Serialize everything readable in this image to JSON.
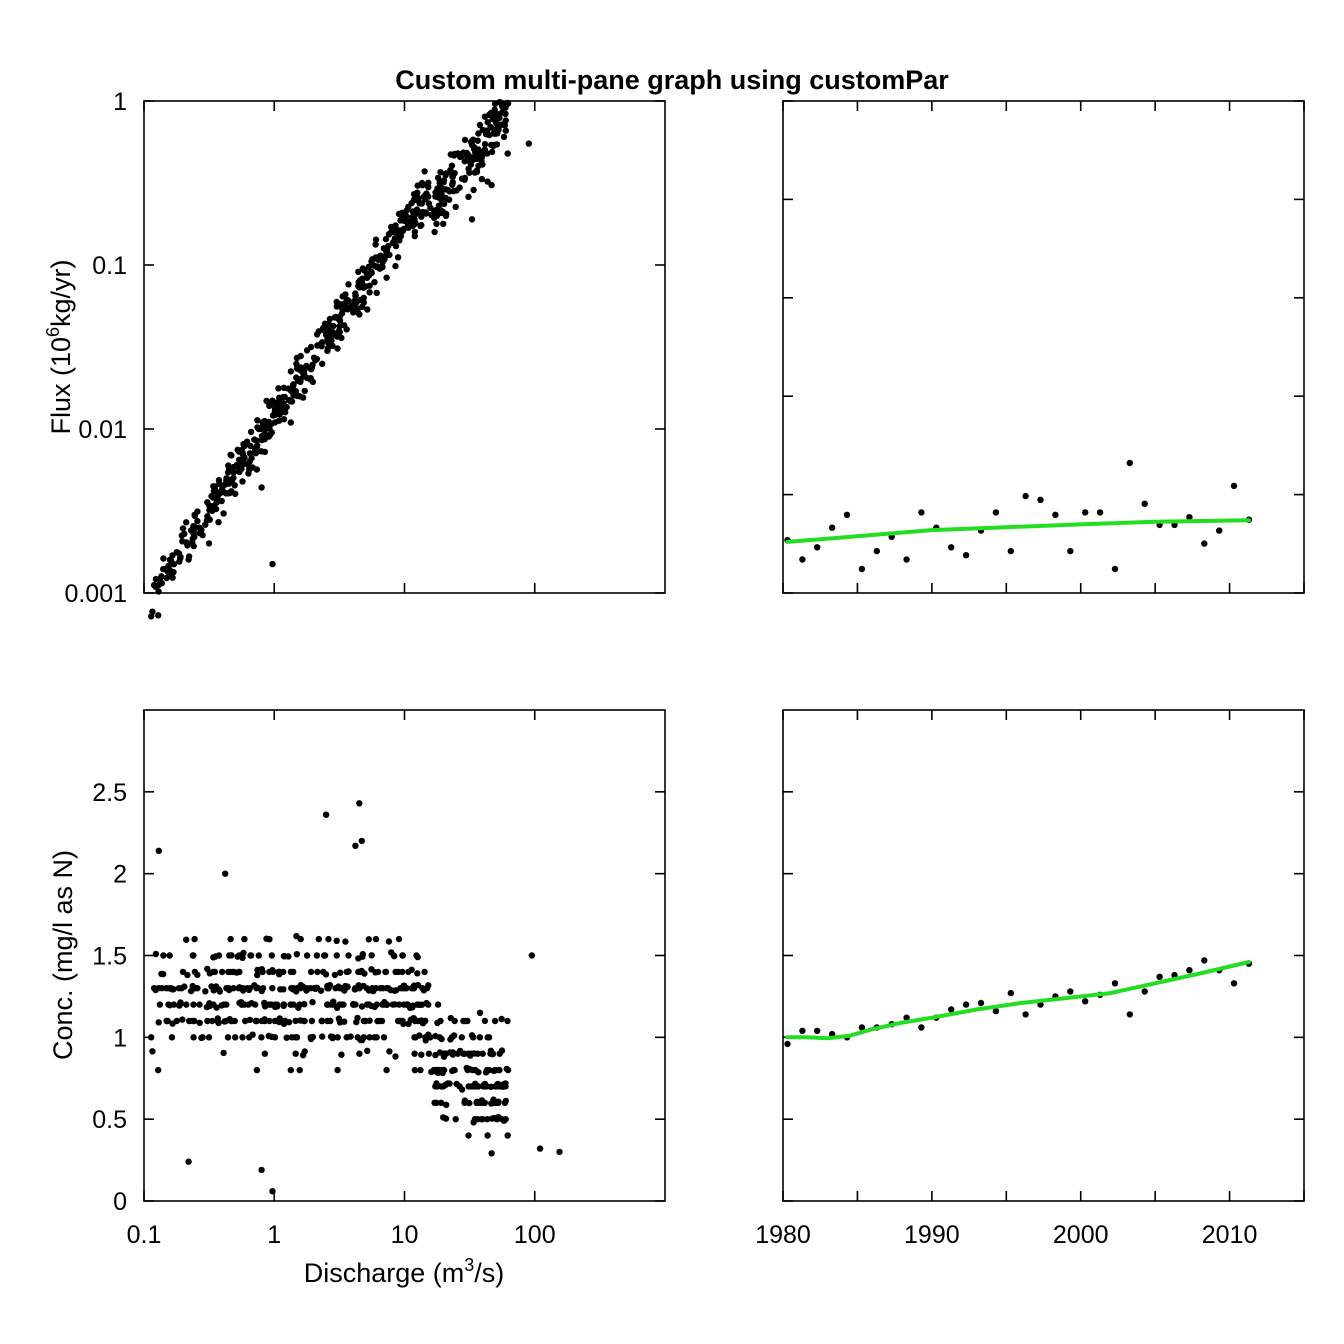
{
  "title": "Custom multi-pane graph using customPar",
  "colors": {
    "points": "#000000",
    "trend": "#22dd22",
    "frame": "#000000",
    "background": "#ffffff"
  },
  "axes": {
    "discharge_label_prefix": "Discharge (m",
    "discharge_label_sup": "3",
    "discharge_label_suffix": "/s)",
    "flux_label_prefix": "Flux (10",
    "flux_label_sup": "6",
    "flux_label_suffix": "kg/yr)",
    "conc_label": "Conc. (mg/l as N)",
    "discharge_ticks": [
      "0.1",
      "1",
      "10",
      "100"
    ],
    "flux_ticks": [
      "0.001",
      "0.01",
      "0.1",
      "1"
    ],
    "conc_ticks": [
      "0",
      "0.5",
      "1",
      "1.5",
      "2",
      "2.5"
    ],
    "year_ticks": [
      "1980",
      "1990",
      "2000",
      "2010"
    ]
  },
  "chart_data": [
    {
      "panel": "flux-vs-discharge",
      "type": "scatter",
      "xscale": "log",
      "yscale": "log",
      "xlim": [
        0.1,
        1000
      ],
      "ylim": [
        0.001,
        1
      ],
      "xlabel": "Discharge (m3/s)",
      "ylabel": "Flux (10^6 kg/yr)",
      "outliers": [
        [
          0.22,
          0.0016
        ],
        [
          0.8,
          0.0044
        ],
        [
          0.97,
          0.0015
        ],
        [
          12,
          0.15
        ],
        [
          22,
          0.25
        ],
        [
          33,
          0.19
        ],
        [
          90,
          0.55
        ]
      ]
    },
    {
      "panel": "flux-vs-year",
      "type": "scatter",
      "xlim": [
        1980,
        2015
      ],
      "points": [
        [
          1980.3,
          0.0021
        ],
        [
          1981.3,
          0.0016
        ],
        [
          1982.3,
          0.0019
        ],
        [
          1983.3,
          0.0025
        ],
        [
          1984.3,
          0.003
        ],
        [
          1985.3,
          0.0014
        ],
        [
          1986.3,
          0.0018
        ],
        [
          1987.3,
          0.0022
        ],
        [
          1988.3,
          0.0016
        ],
        [
          1989.3,
          0.0031
        ],
        [
          1990.3,
          0.0025
        ],
        [
          1991.3,
          0.0019
        ],
        [
          1992.3,
          0.0017
        ],
        [
          1993.3,
          0.0024
        ],
        [
          1994.3,
          0.0031
        ],
        [
          1995.3,
          0.0018
        ],
        [
          1996.3,
          0.0039
        ],
        [
          1997.3,
          0.0037
        ],
        [
          1998.3,
          0.003
        ],
        [
          1999.3,
          0.0018
        ],
        [
          2000.3,
          0.0031
        ],
        [
          2001.3,
          0.0031
        ],
        [
          2002.3,
          0.0014
        ],
        [
          2003.3,
          0.0062
        ],
        [
          2004.3,
          0.0035
        ],
        [
          2005.3,
          0.0026
        ],
        [
          2006.3,
          0.0026
        ],
        [
          2007.3,
          0.0029
        ],
        [
          2008.3,
          0.002
        ],
        [
          2009.3,
          0.0024
        ],
        [
          2010.3,
          0.0045
        ],
        [
          2011.3,
          0.0028
        ]
      ],
      "trend": [
        [
          1980.3,
          0.00205
        ],
        [
          1985,
          0.00222
        ],
        [
          1990,
          0.00242
        ],
        [
          1995,
          0.00252
        ],
        [
          2000,
          0.00262
        ],
        [
          2005,
          0.00272
        ],
        [
          2011.3,
          0.00278
        ]
      ]
    },
    {
      "panel": "conc-vs-discharge",
      "type": "scatter",
      "xscale": "log",
      "xlim": [
        0.1,
        1000
      ],
      "ylim": [
        0,
        3
      ],
      "xlabel": "Discharge (m3/s)",
      "ylabel": "Conc. (mg/l as N)",
      "outliers": [
        [
          0.13,
          2.14
        ],
        [
          0.22,
          0.24
        ],
        [
          0.8,
          0.19
        ],
        [
          0.97,
          0.06
        ],
        [
          2.5,
          2.36
        ],
        [
          4.5,
          2.43
        ],
        [
          4.7,
          2.2
        ],
        [
          4.2,
          2.17
        ],
        [
          95,
          1.5
        ],
        [
          155,
          0.3
        ],
        [
          110,
          0.32
        ],
        [
          38,
          1.15
        ],
        [
          0.42,
          2.0
        ]
      ]
    },
    {
      "panel": "conc-vs-year",
      "type": "scatter",
      "xlim": [
        1980,
        2015
      ],
      "ylim": [
        0,
        3
      ],
      "points": [
        [
          1980.3,
          0.96
        ],
        [
          1981.3,
          1.04
        ],
        [
          1982.3,
          1.04
        ],
        [
          1983.3,
          1.02
        ],
        [
          1984.3,
          1.0
        ],
        [
          1985.3,
          1.06
        ],
        [
          1986.3,
          1.06
        ],
        [
          1987.3,
          1.08
        ],
        [
          1988.3,
          1.12
        ],
        [
          1989.3,
          1.06
        ],
        [
          1990.3,
          1.12
        ],
        [
          1991.3,
          1.17
        ],
        [
          1992.3,
          1.2
        ],
        [
          1993.3,
          1.21
        ],
        [
          1994.3,
          1.16
        ],
        [
          1995.3,
          1.27
        ],
        [
          1996.3,
          1.14
        ],
        [
          1997.3,
          1.2
        ],
        [
          1998.3,
          1.25
        ],
        [
          1999.3,
          1.28
        ],
        [
          2000.3,
          1.22
        ],
        [
          2001.3,
          1.26
        ],
        [
          2002.3,
          1.33
        ],
        [
          2003.3,
          1.14
        ],
        [
          2004.3,
          1.28
        ],
        [
          2005.3,
          1.37
        ],
        [
          2006.3,
          1.38
        ],
        [
          2007.3,
          1.41
        ],
        [
          2008.3,
          1.47
        ],
        [
          2009.3,
          1.41
        ],
        [
          2010.3,
          1.33
        ],
        [
          2011.3,
          1.45
        ]
      ],
      "trend": [
        [
          1980.3,
          1.0
        ],
        [
          1981.5,
          1.0
        ],
        [
          1983,
          0.995
        ],
        [
          1984.5,
          1.01
        ],
        [
          1986,
          1.05
        ],
        [
          1988,
          1.09
        ],
        [
          1990,
          1.12
        ],
        [
          1993,
          1.17
        ],
        [
          1996,
          1.21
        ],
        [
          1999,
          1.24
        ],
        [
          2002,
          1.27
        ],
        [
          2005,
          1.33
        ],
        [
          2008,
          1.39
        ],
        [
          2011.3,
          1.46
        ]
      ]
    }
  ]
}
